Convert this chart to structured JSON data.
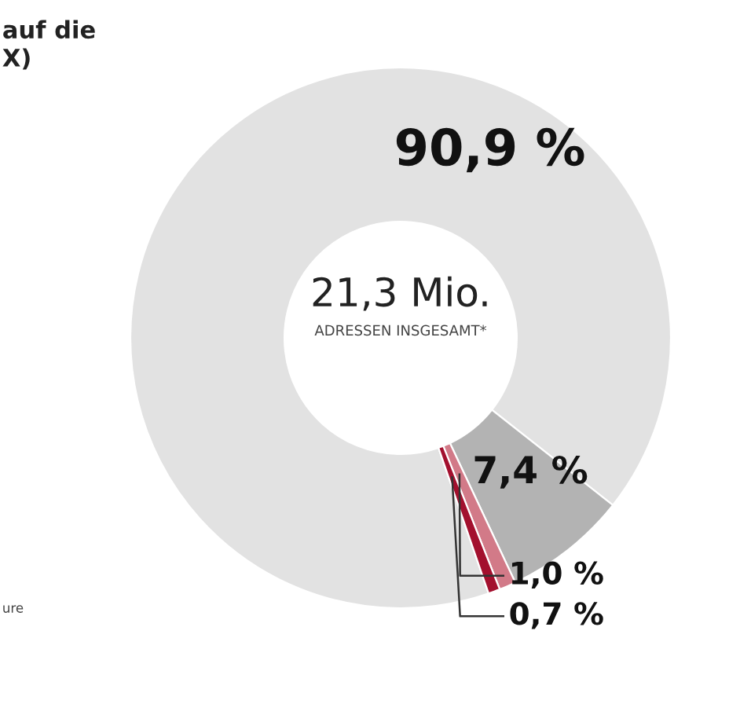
{
  "chart_data": {
    "type": "donut",
    "categories": [
      null,
      null,
      null,
      null
    ],
    "values": [
      90.9,
      7.4,
      1.0,
      0.7
    ],
    "colors": [
      "#e2e2e2",
      "#b3b3b3",
      "#d27a88",
      "#a3102e"
    ],
    "value_labels": [
      "90,9 %",
      "7,4 %",
      "1,0 %",
      "0,7 %"
    ],
    "annotations": [
      "21,3 Mio.",
      "ADRESSEN INSGESAMT*",
      "auf die",
      "X)",
      "ure"
    ],
    "legend": false
  }
}
